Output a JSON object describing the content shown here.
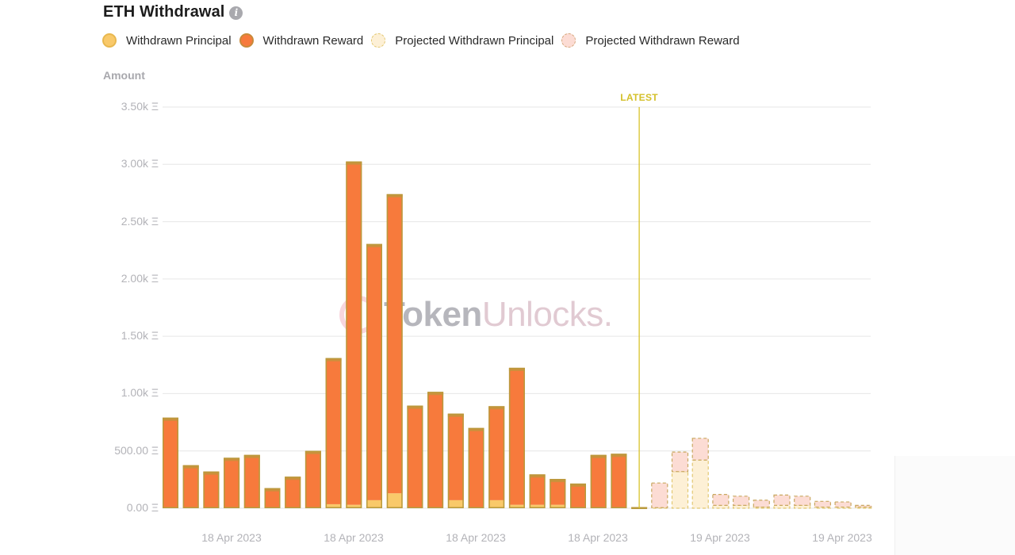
{
  "header": {
    "title": "ETH Withdrawal",
    "info_icon": "info-icon"
  },
  "legend": [
    {
      "label": "Withdrawn Principal",
      "fill": "#f9c96a",
      "border": "#e8b84f",
      "dashed": false
    },
    {
      "label": "Withdrawn Reward",
      "fill": "#f77a3c",
      "border": "#c98a3a",
      "dashed": false
    },
    {
      "label": "Projected Withdrawn Principal",
      "fill": "#fdf0d6",
      "border": "#e2c770",
      "dashed": true
    },
    {
      "label": "Projected Withdrawn Reward",
      "fill": "#fcdcd4",
      "border": "#d4a67a",
      "dashed": true
    }
  ],
  "axis": {
    "y_title": "Amount",
    "latest_label": "LATEST"
  },
  "colors": {
    "principal": "#f9c96a",
    "reward": "#f77a3c",
    "bar_border": "#b99a3c",
    "projected_principal": "#fdf0d6",
    "projected_reward": "#fcdcd4",
    "projected_border": "#c9a860",
    "latest_line": "#d9c229",
    "grid": "#e6e6e6"
  },
  "watermark": {
    "part1": "Token",
    "part2": "Unlocks."
  },
  "chart_data": {
    "type": "bar",
    "stacked": true,
    "title": "ETH Withdrawal",
    "xlabel": "",
    "ylabel": "Amount",
    "ylim": [
      0,
      3500
    ],
    "y_ticks": [
      "0.00 Ξ",
      "500.00 Ξ",
      "1.00k Ξ",
      "1.50k Ξ",
      "2.00k Ξ",
      "2.50k Ξ",
      "3.00k Ξ",
      "3.50k Ξ"
    ],
    "y_tick_values": [
      0,
      500,
      1000,
      1500,
      2000,
      2500,
      3000,
      3500
    ],
    "x_tick_labels": [
      "18 Apr 2023",
      "18 Apr 2023",
      "18 Apr 2023",
      "18 Apr 2023",
      "19 Apr 2023",
      "19 Apr 2023"
    ],
    "x_tick_positions": [
      292,
      446,
      600,
      754,
      908,
      1062
    ],
    "grid": true,
    "legend_position": "top",
    "latest_marker_index": 23,
    "series": [
      {
        "name": "Withdrawn Principal",
        "values": [
          5,
          5,
          5,
          5,
          5,
          5,
          5,
          10,
          35,
          30,
          70,
          130,
          5,
          10,
          70,
          5,
          70,
          30,
          30,
          30,
          5,
          5,
          5,
          5,
          0,
          0,
          0,
          0,
          0,
          0,
          0,
          0,
          0,
          0,
          0
        ]
      },
      {
        "name": "Withdrawn Reward",
        "values": [
          785,
          370,
          315,
          435,
          460,
          170,
          270,
          490,
          1275,
          2995,
          2235,
          2610,
          890,
          1005,
          755,
          695,
          820,
          1195,
          265,
          225,
          210,
          460,
          470,
          5,
          0,
          0,
          0,
          0,
          0,
          0,
          0,
          0,
          0,
          0,
          0
        ]
      },
      {
        "name": "Projected Withdrawn Principal",
        "values": [
          0,
          0,
          0,
          0,
          0,
          0,
          0,
          0,
          0,
          0,
          0,
          0,
          0,
          0,
          0,
          0,
          0,
          0,
          0,
          0,
          0,
          0,
          0,
          0,
          5,
          320,
          420,
          25,
          25,
          10,
          25,
          25,
          10,
          10,
          10
        ]
      },
      {
        "name": "Projected Withdrawn Reward",
        "values": [
          0,
          0,
          0,
          0,
          0,
          0,
          0,
          0,
          0,
          0,
          0,
          0,
          0,
          0,
          0,
          0,
          0,
          0,
          0,
          0,
          0,
          0,
          0,
          0,
          215,
          170,
          190,
          95,
          80,
          60,
          90,
          80,
          50,
          45,
          15
        ]
      }
    ]
  }
}
